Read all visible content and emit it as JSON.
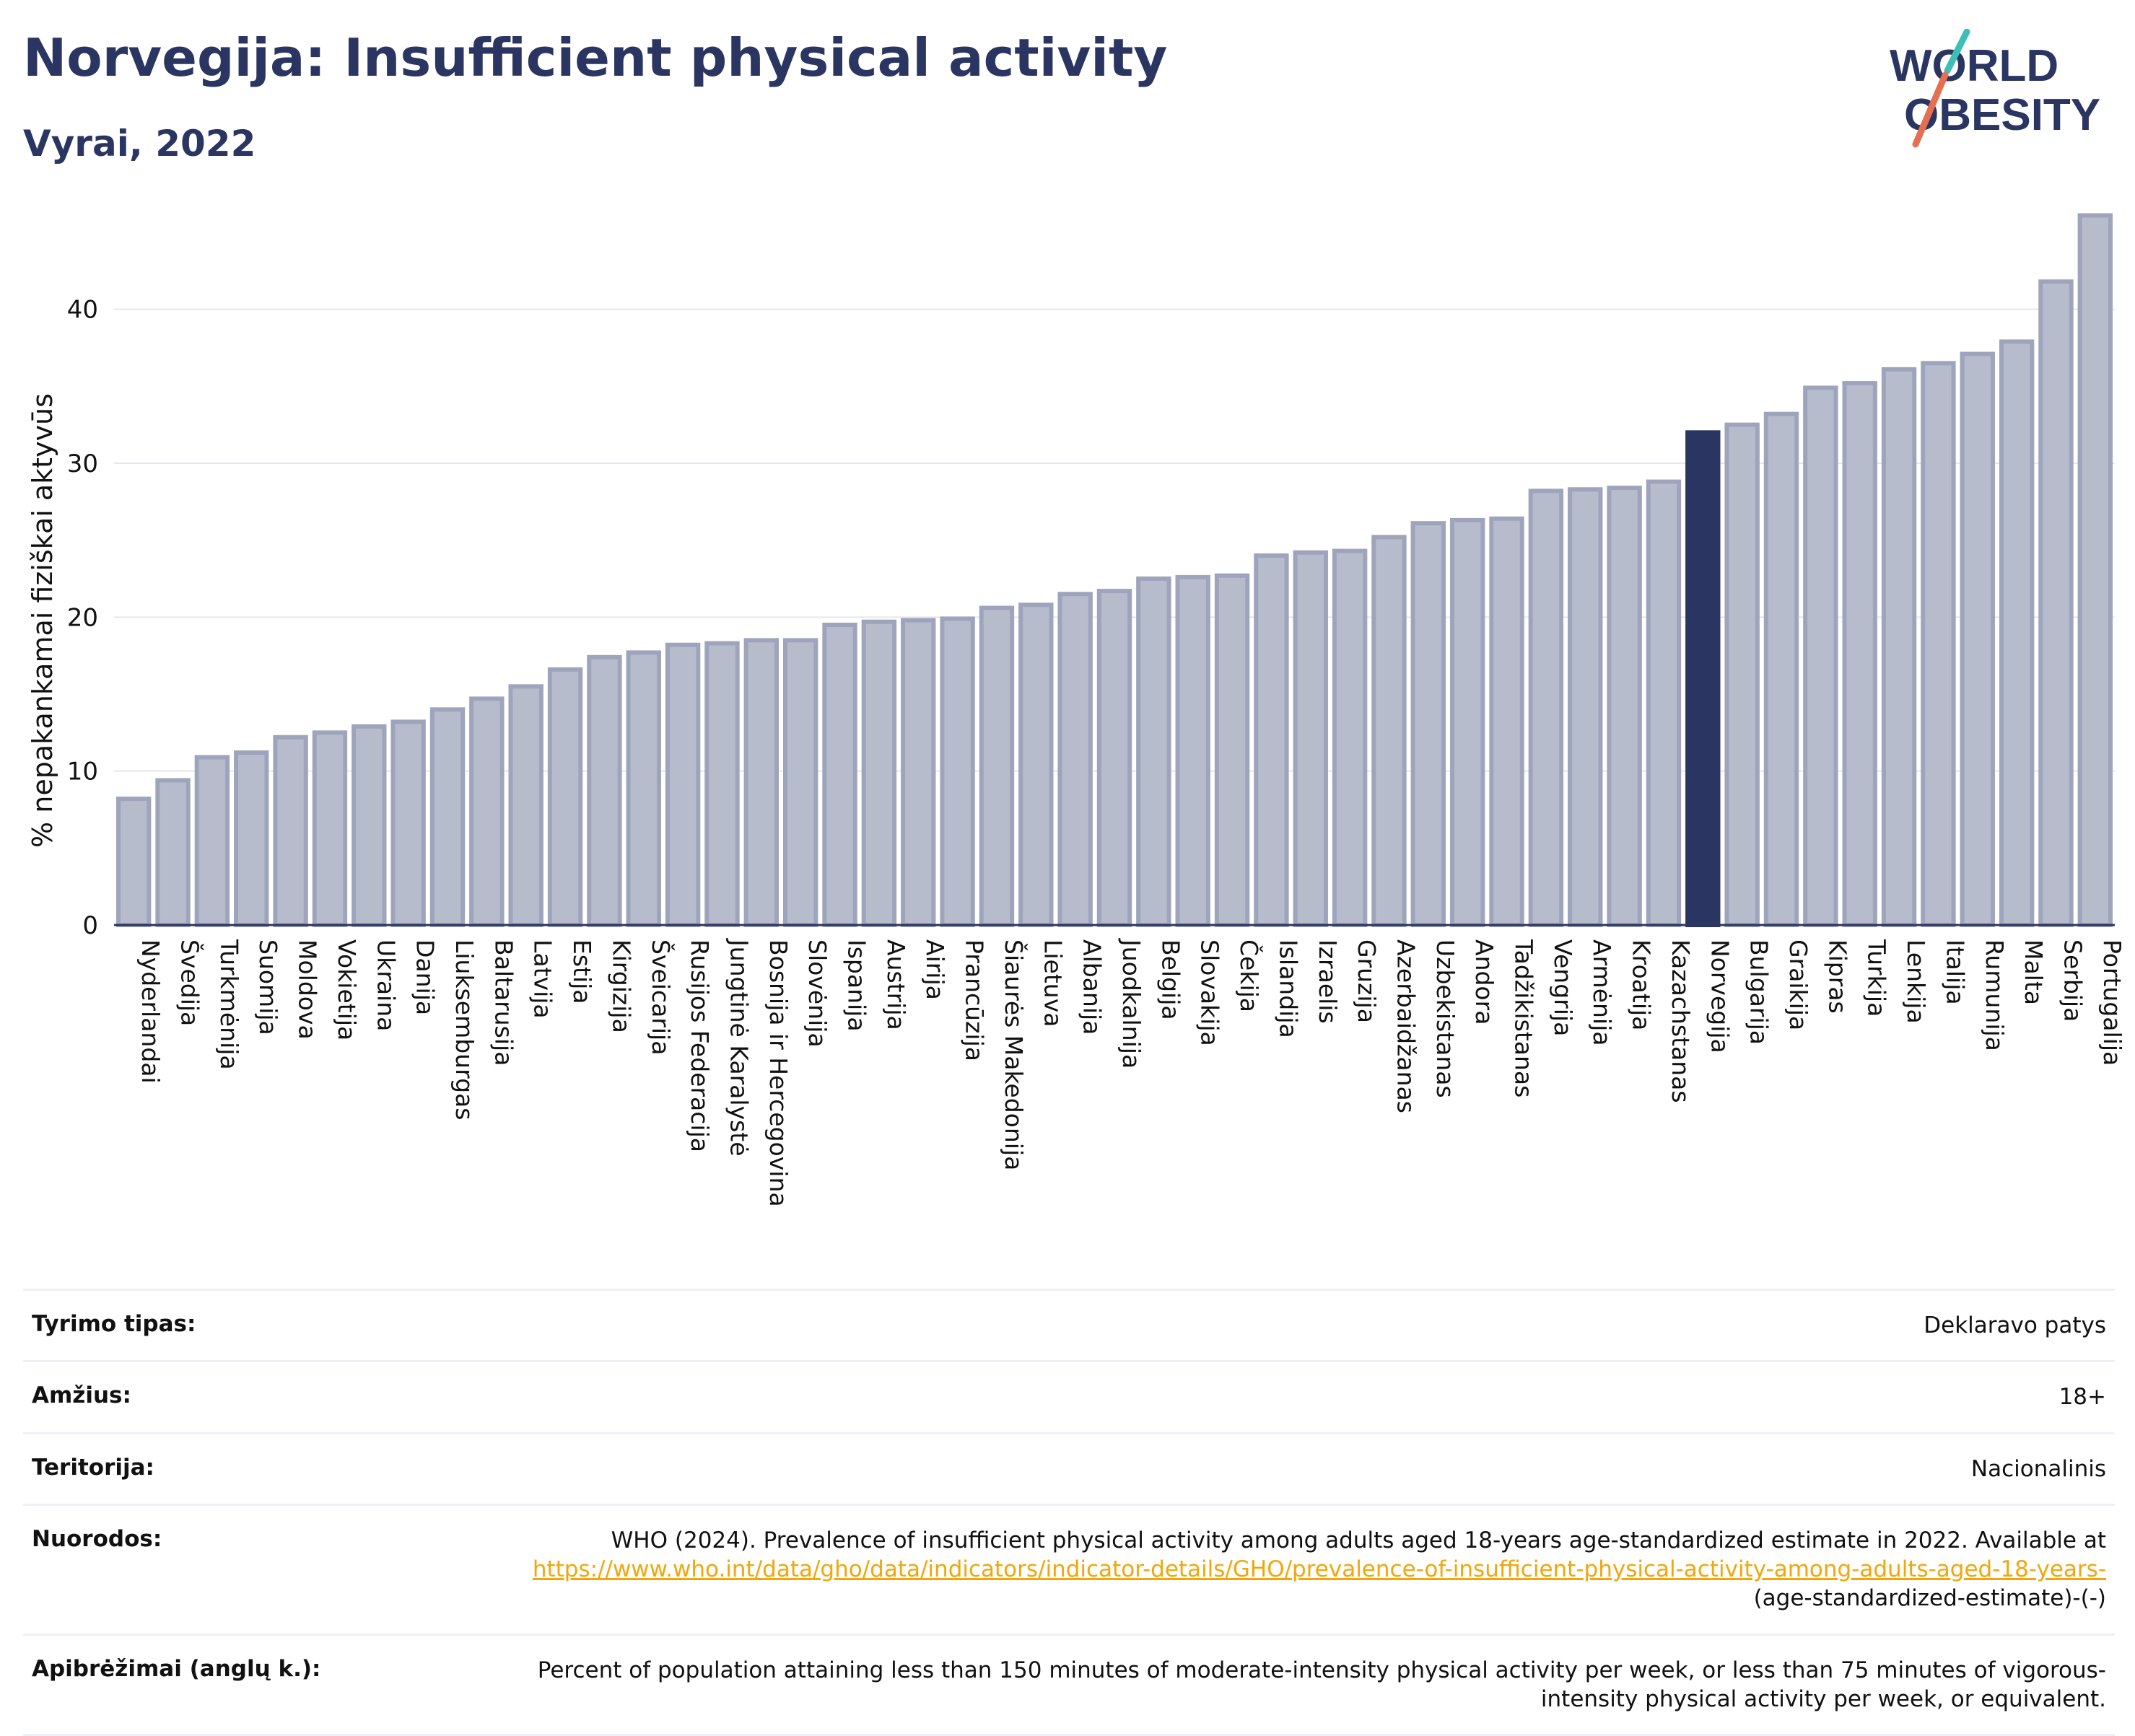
{
  "title": "Norvegija: Insufficient physical activity",
  "subtitle": "Vyrai, 2022",
  "logo": {
    "line1": "WORLD",
    "line2": "OBESITY",
    "colors": {
      "text": "#2b3562",
      "slash_top": "#3dbfb6",
      "slash_bottom": "#e76f51"
    }
  },
  "chart_data": {
    "type": "bar",
    "ylabel": "% nepakankamai fiziškai aktyvūs",
    "xlabel": "",
    "ylim": [
      0,
      46.5
    ],
    "yticks": [
      0,
      10,
      20,
      30,
      40
    ],
    "grid": true,
    "highlight": "Norvegija",
    "colors": {
      "bar": "#b7bccd",
      "bar_border": "#9ea4bb",
      "highlight": "#2b3562",
      "grid": "#e3e6ee",
      "axis": "#2b3562"
    },
    "categories": [
      "Nyderlandai",
      "Švedija",
      "Turkmėnija",
      "Suomija",
      "Moldova",
      "Vokietija",
      "Ukraina",
      "Danija",
      "Liuksemburgas",
      "Baltarusija",
      "Latvija",
      "Estija",
      "Kirgizija",
      "Šveicarija",
      "Rusijos Federacija",
      "Jungtinė Karalystė",
      "Bosnija ir Hercegovina",
      "Slovėnija",
      "Ispanija",
      "Austrija",
      "Airija",
      "Prancūzija",
      "Šiaurės Makedonija",
      "Lietuva",
      "Albanija",
      "Juodkalnija",
      "Belgija",
      "Slovakija",
      "Čekija",
      "Islandija",
      "Izraelis",
      "Gruzija",
      "Azerbaidžanas",
      "Uzbekistanas",
      "Andora",
      "Tadžikistanas",
      "Vengrija",
      "Armėnija",
      "Kroatija",
      "Kazachstanas",
      "Norvegija",
      "Bulgarija",
      "Graikija",
      "Kipras",
      "Turkija",
      "Lenkija",
      "Italija",
      "Rumunija",
      "Malta",
      "Serbija",
      "Portugalija"
    ],
    "values": [
      8.2,
      9.4,
      10.9,
      11.2,
      12.2,
      12.5,
      12.9,
      13.2,
      14.0,
      14.7,
      15.5,
      16.6,
      17.4,
      17.7,
      18.2,
      18.3,
      18.5,
      18.5,
      19.5,
      19.7,
      19.8,
      19.9,
      20.6,
      20.8,
      21.5,
      21.7,
      22.5,
      22.6,
      22.7,
      24.0,
      24.2,
      24.3,
      25.2,
      26.1,
      26.3,
      26.4,
      28.2,
      28.3,
      28.4,
      28.8,
      32.0,
      32.5,
      33.2,
      34.9,
      35.2,
      36.1,
      36.5,
      37.1,
      37.9,
      41.8,
      46.1
    ]
  },
  "meta": [
    {
      "label": "Tyrimo tipas:",
      "value": "Deklaravo patys"
    },
    {
      "label": "Amžius:",
      "value": "18+"
    },
    {
      "label": "Teritorija:",
      "value": "Nacionalinis"
    },
    {
      "label": "Nuorodos:",
      "value": "WHO (2024). Prevalence of insufficient physical activity among adults aged 18-years age-standardized estimate in 2022. Available at",
      "link": "https://www.who.int/data/gho/data/indicators/indicator-details/GHO/prevalence-of-insufficient-physical-activity-among-adults-aged-18-years-",
      "suffix": "(age-standardized-estimate)-(-)"
    },
    {
      "label": "Apibrėžimai (anglų k.):",
      "value": "Percent of population attaining less than 150 minutes of moderate-intensity physical activity per week, or less than 75 minutes of vigorous-intensity physical activity per week, or equivalent."
    }
  ]
}
